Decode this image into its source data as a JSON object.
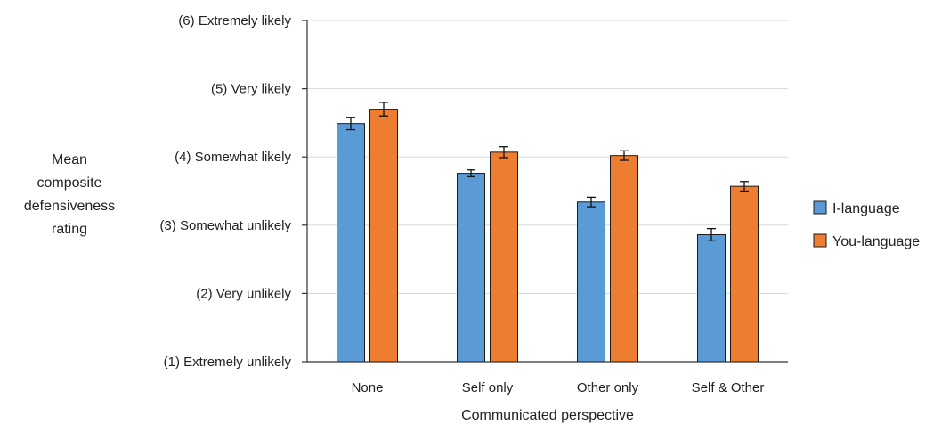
{
  "chart_data": {
    "type": "bar",
    "title": "",
    "xlabel": "Communicated perspective",
    "ylabel_lines": [
      "Mean",
      "composite",
      "defensiveness",
      "rating"
    ],
    "ylim": [
      1,
      6
    ],
    "yticks": [
      {
        "value": 6,
        "label": "(6) Extremely likely"
      },
      {
        "value": 5,
        "label": "(5) Very likely"
      },
      {
        "value": 4,
        "label": "(4) Somewhat likely"
      },
      {
        "value": 3,
        "label": "(3) Somewhat unlikely"
      },
      {
        "value": 2,
        "label": "(2) Very unlikely"
      },
      {
        "value": 1,
        "label": "(1) Extremely unlikely"
      }
    ],
    "categories": [
      "None",
      "Self only",
      "Other only",
      "Self & Other"
    ],
    "series": [
      {
        "name": "I-language",
        "color": "#5b9bd5",
        "values": [
          4.49,
          3.76,
          3.34,
          2.86
        ],
        "errors": [
          0.09,
          0.05,
          0.07,
          0.09
        ]
      },
      {
        "name": "You-language",
        "color": "#ed7d31",
        "values": [
          4.7,
          4.07,
          4.02,
          3.57
        ],
        "errors": [
          0.1,
          0.08,
          0.07,
          0.07
        ]
      }
    ],
    "grid": true,
    "legend_position": "right"
  }
}
